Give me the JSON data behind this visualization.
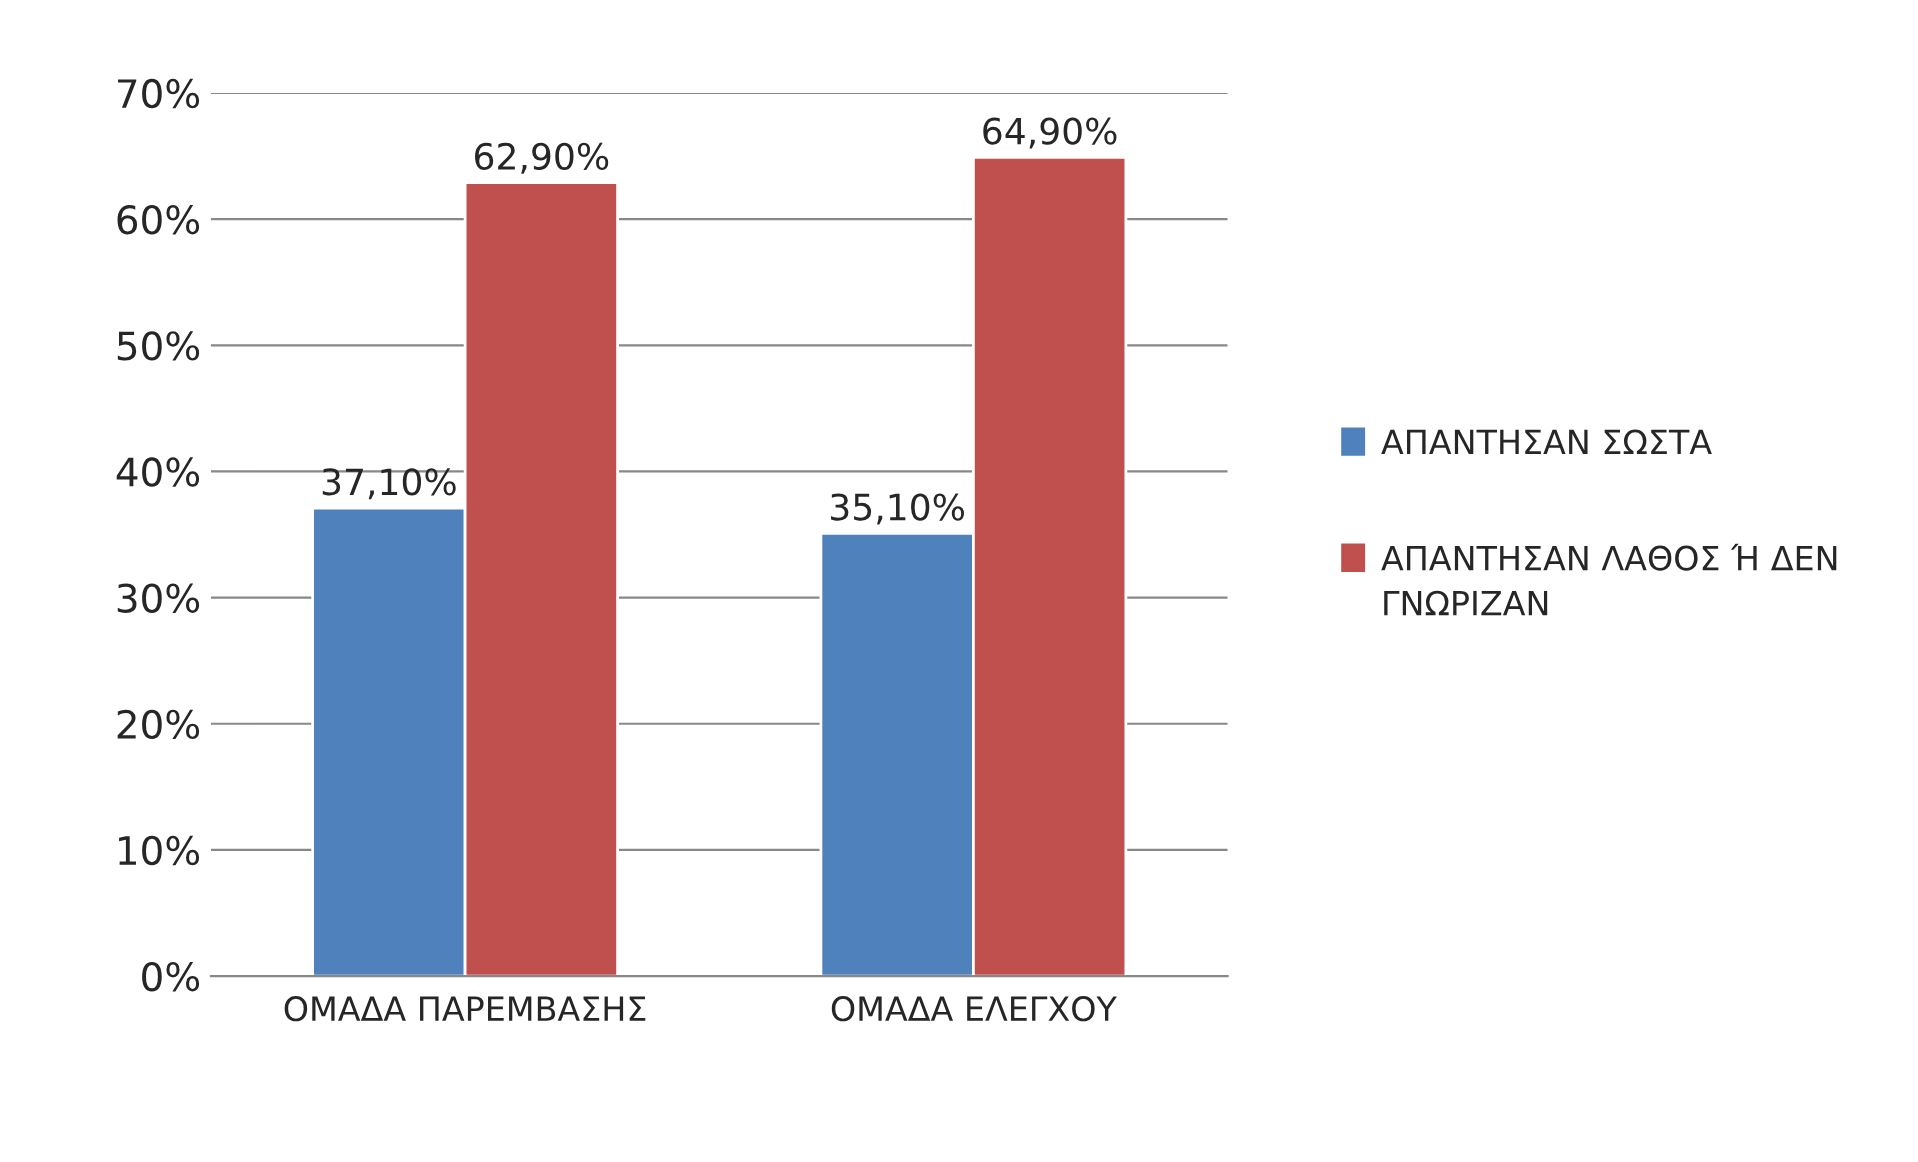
{
  "chart_data": {
    "type": "bar",
    "categories": [
      "ΟΜΑΔΑ ΠΑΡΕΜΒΑΣΗΣ",
      "ΟΜΑΔΑ ΕΛΕΓΧΟΥ"
    ],
    "series": [
      {
        "name": "ΑΠΑΝΤΗΣΑΝ ΣΩΣΤΑ",
        "color": "#4f81bd",
        "values": [
          37.1,
          35.1
        ],
        "value_labels": [
          "37,10%",
          "35,10%"
        ]
      },
      {
        "name": "ΑΠΑΝΤΗΣΑΝ ΛΑΘΟΣ Ή ΔΕΝ ΓΝΩΡΙΖΑΝ",
        "color": "#c0504d",
        "values": [
          62.9,
          64.9
        ],
        "value_labels": [
          "62,90%",
          "64,90%"
        ]
      }
    ],
    "ylim": [
      0,
      70
    ],
    "yticks": [
      {
        "value": 0,
        "label": "0%"
      },
      {
        "value": 10,
        "label": "10%"
      },
      {
        "value": 20,
        "label": "20%"
      },
      {
        "value": 30,
        "label": "30%"
      },
      {
        "value": 40,
        "label": "40%"
      },
      {
        "value": 50,
        "label": "50%"
      },
      {
        "value": 60,
        "label": "60%"
      },
      {
        "value": 70,
        "label": "70%"
      }
    ],
    "grid": "y",
    "legend": "right"
  }
}
